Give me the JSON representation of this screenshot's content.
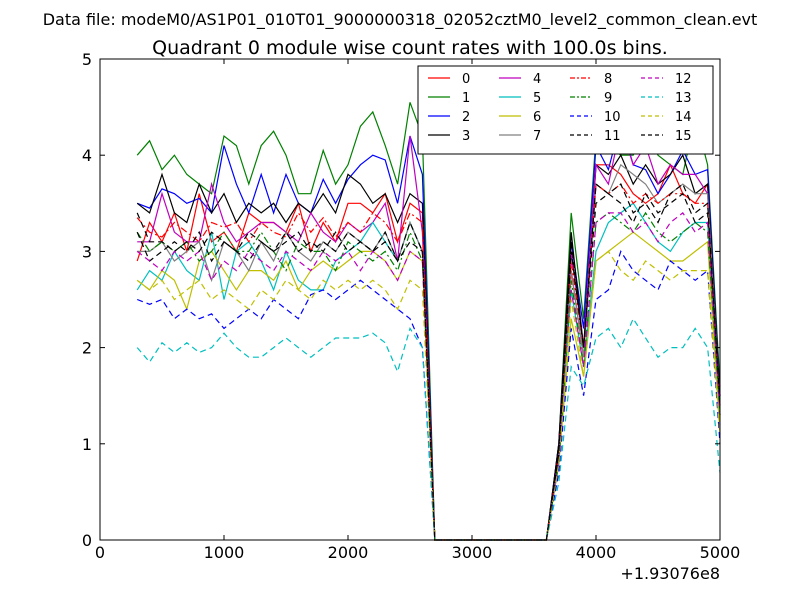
{
  "figure": {
    "suptitle": "Data file: modeM0/AS1P01_010T01_9000000318_02052cztM0_level2_common_clean.evt",
    "title": "Quadrant 0 module wise count rates with 100.0s bins.",
    "x_offset_label": "+1.93076e8"
  },
  "chart_data": {
    "type": "line",
    "title": "Quadrant 0 module wise count rates with 100.0s bins.",
    "xlabel": "",
    "ylabel": "",
    "xlim": [
      0,
      5000
    ],
    "ylim": [
      0,
      5
    ],
    "x_offset": "+1.93076e8",
    "x_ticks": [
      "0",
      "1000",
      "2000",
      "3000",
      "4000",
      "5000"
    ],
    "y_ticks": [
      "0",
      "1",
      "2",
      "3",
      "4",
      "5"
    ],
    "grid": false,
    "legend_position": "top-right",
    "legend_columns": 4,
    "x": [
      300,
      400,
      500,
      600,
      700,
      800,
      900,
      1000,
      1100,
      1200,
      1300,
      1400,
      1500,
      1600,
      1700,
      1800,
      1900,
      2000,
      2100,
      2200,
      2300,
      2400,
      2500,
      2600,
      2700,
      2800,
      2900,
      3000,
      3100,
      3200,
      3300,
      3400,
      3500,
      3600,
      3700,
      3800,
      3900,
      4000,
      4100,
      4200,
      4300,
      4400,
      4500,
      4600,
      4700,
      4800,
      4900,
      5000
    ],
    "series": [
      {
        "name": "0",
        "color": "#ff0000",
        "dash": "solid",
        "values": [
          2.9,
          3.3,
          3.1,
          3.4,
          3.0,
          3.6,
          3.1,
          3.2,
          3.0,
          3.4,
          3.3,
          3.3,
          3.2,
          3.5,
          3.0,
          3.3,
          3.1,
          3.5,
          3.5,
          3.4,
          3.6,
          3.1,
          3.5,
          3.4,
          0,
          0,
          0,
          0,
          0,
          0,
          0,
          0,
          0,
          0,
          0.9,
          2.8,
          1.9,
          3.9,
          3.9,
          3.8,
          3.6,
          3.5,
          3.6,
          3.9,
          3.6,
          3.5,
          3.7,
          1.5
        ]
      },
      {
        "name": "1",
        "color": "#008000",
        "dash": "solid",
        "values": [
          4.0,
          4.15,
          3.85,
          4.0,
          3.8,
          3.7,
          3.6,
          4.2,
          4.1,
          3.7,
          4.1,
          4.25,
          4.0,
          3.6,
          3.6,
          4.05,
          3.7,
          3.9,
          4.3,
          4.45,
          4.1,
          3.7,
          4.55,
          4.2,
          0,
          0,
          0,
          0,
          0,
          0,
          0,
          0,
          0,
          0,
          1.0,
          3.4,
          2.3,
          4.2,
          4.1,
          4.0,
          4.0,
          4.3,
          4.0,
          3.9,
          3.8,
          4.4,
          3.9,
          1.6
        ]
      },
      {
        "name": "2",
        "color": "#0000ff",
        "dash": "solid",
        "values": [
          3.5,
          3.45,
          3.65,
          3.6,
          3.5,
          3.55,
          3.4,
          4.1,
          3.7,
          3.4,
          3.8,
          3.4,
          3.8,
          3.5,
          3.4,
          3.75,
          3.5,
          3.75,
          3.9,
          4.0,
          3.95,
          3.5,
          4.2,
          3.8,
          0,
          0,
          0,
          0,
          0,
          0,
          0,
          0,
          0,
          0,
          1.0,
          3.1,
          2.2,
          4.1,
          3.85,
          4.35,
          3.9,
          3.85,
          3.6,
          3.8,
          4.05,
          3.8,
          3.85,
          1.5
        ]
      },
      {
        "name": "3",
        "color": "#000000",
        "dash": "solid",
        "values": [
          3.5,
          3.4,
          3.8,
          3.4,
          3.3,
          3.7,
          3.4,
          3.6,
          3.3,
          3.5,
          3.4,
          3.5,
          3.3,
          3.5,
          3.4,
          3.6,
          3.4,
          3.8,
          3.7,
          3.5,
          3.6,
          3.3,
          3.6,
          3.5,
          0,
          0,
          0,
          0,
          0,
          0,
          0,
          0,
          0,
          0,
          1.0,
          3.2,
          2.0,
          3.9,
          3.8,
          4.0,
          3.7,
          3.9,
          3.7,
          3.8,
          4.0,
          3.6,
          3.7,
          1.5
        ]
      },
      {
        "name": "4",
        "color": "#bf00bf",
        "dash": "solid",
        "values": [
          3.1,
          3.1,
          3.6,
          3.2,
          3.1,
          3.1,
          3.7,
          3.3,
          3.1,
          3.2,
          3.3,
          3.3,
          3.2,
          3.1,
          3.4,
          3.2,
          3.1,
          3.3,
          3.2,
          3.3,
          3.5,
          2.9,
          4.2,
          3.2,
          0,
          0,
          0,
          0,
          0,
          0,
          0,
          0,
          0,
          0,
          0.9,
          3.0,
          2.0,
          3.9,
          3.7,
          4.3,
          3.9,
          4.1,
          3.7,
          3.9,
          3.8,
          3.8,
          3.6,
          1.3
        ]
      },
      {
        "name": "5",
        "color": "#00bfbf",
        "dash": "solid",
        "values": [
          2.6,
          2.8,
          2.7,
          3.0,
          2.8,
          2.7,
          3.2,
          2.5,
          3.0,
          3.1,
          2.9,
          2.6,
          3.0,
          2.7,
          2.6,
          2.6,
          2.9,
          3.0,
          3.1,
          3.3,
          3.1,
          2.9,
          3.3,
          3.0,
          0,
          0,
          0,
          0,
          0,
          0,
          0,
          0,
          0,
          0,
          0.8,
          2.6,
          1.8,
          3.0,
          3.3,
          3.4,
          3.5,
          3.3,
          3.1,
          3.0,
          3.2,
          3.3,
          3.3,
          1.2
        ]
      },
      {
        "name": "6",
        "color": "#bfbf00",
        "dash": "solid",
        "values": [
          2.7,
          2.6,
          2.8,
          2.7,
          2.4,
          2.9,
          3.0,
          2.8,
          2.6,
          2.8,
          2.8,
          2.7,
          2.9,
          2.6,
          2.8,
          2.9,
          2.8,
          2.9,
          3.0,
          3.0,
          2.9,
          2.7,
          3.0,
          2.9,
          0,
          0,
          0,
          0,
          0,
          0,
          0,
          0,
          0,
          0,
          0.8,
          2.3,
          1.7,
          2.9,
          3.0,
          3.1,
          3.2,
          3.1,
          3.0,
          2.9,
          2.9,
          3.0,
          3.1,
          1.1
        ]
      },
      {
        "name": "7",
        "color": "#808080",
        "dash": "solid",
        "values": [
          3.0,
          3.0,
          3.1,
          2.9,
          3.0,
          3.1,
          2.7,
          3.1,
          3.0,
          2.8,
          3.1,
          2.9,
          3.2,
          3.0,
          2.9,
          3.1,
          3.0,
          3.2,
          3.1,
          3.0,
          3.2,
          2.9,
          3.3,
          3.0,
          0,
          0,
          0,
          0,
          0,
          0,
          0,
          0,
          0,
          0,
          0.8,
          2.8,
          1.9,
          3.7,
          3.6,
          3.9,
          3.8,
          3.7,
          3.5,
          3.6,
          3.7,
          3.6,
          3.6,
          1.4
        ]
      },
      {
        "name": "8",
        "color": "#ff0000",
        "dash": "dashdot",
        "values": [
          3.35,
          3.2,
          3.15,
          3.3,
          3.2,
          3.1,
          3.3,
          3.25,
          3.3,
          3.1,
          3.3,
          3.2,
          3.15,
          3.4,
          3.2,
          3.35,
          3.15,
          3.3,
          3.2,
          3.4,
          3.3,
          3.1,
          3.4,
          3.3,
          0,
          0,
          0,
          0,
          0,
          0,
          0,
          0,
          0,
          0,
          0.9,
          2.9,
          2.0,
          3.7,
          3.6,
          3.7,
          3.5,
          3.6,
          3.5,
          3.6,
          3.6,
          3.5,
          3.5,
          1.4
        ]
      },
      {
        "name": "9",
        "color": "#008000",
        "dash": "dashdot",
        "values": [
          3.2,
          3.0,
          3.1,
          3.0,
          3.1,
          2.9,
          3.0,
          3.2,
          3.0,
          3.0,
          3.2,
          3.0,
          2.8,
          3.1,
          3.0,
          3.0,
          2.8,
          3.1,
          3.0,
          2.9,
          3.0,
          2.8,
          3.2,
          2.9,
          0,
          0,
          0,
          0,
          0,
          0,
          0,
          0,
          0,
          0,
          0.8,
          2.7,
          1.8,
          3.3,
          3.4,
          3.3,
          3.2,
          3.4,
          3.2,
          3.1,
          3.2,
          3.3,
          3.2,
          1.3
        ]
      },
      {
        "name": "10",
        "color": "#0000ff",
        "dash": "dashed",
        "values": [
          2.5,
          2.45,
          2.5,
          2.3,
          2.4,
          2.3,
          2.35,
          2.2,
          2.3,
          2.4,
          2.3,
          2.5,
          2.4,
          2.3,
          2.55,
          2.6,
          2.5,
          2.6,
          2.7,
          2.6,
          2.5,
          2.4,
          2.3,
          2.0,
          0,
          0,
          0,
          0,
          0,
          0,
          0,
          0,
          0,
          0,
          0.7,
          2.2,
          1.5,
          2.5,
          2.6,
          3.0,
          2.8,
          2.7,
          2.6,
          2.9,
          2.8,
          2.7,
          2.8,
          1.0
        ]
      },
      {
        "name": "11",
        "color": "#000000",
        "dash": "dashed",
        "values": [
          3.2,
          2.9,
          3.0,
          3.1,
          3.0,
          3.2,
          2.9,
          3.1,
          3.0,
          2.9,
          3.1,
          3.0,
          3.2,
          3.0,
          3.1,
          3.0,
          3.2,
          3.0,
          3.1,
          3.0,
          3.2,
          2.9,
          3.1,
          3.0,
          0,
          0,
          0,
          0,
          0,
          0,
          0,
          0,
          0,
          0,
          0.9,
          3.0,
          2.0,
          3.5,
          3.6,
          3.5,
          3.3,
          3.6,
          3.4,
          3.5,
          3.6,
          3.3,
          3.4,
          1.4
        ]
      },
      {
        "name": "12",
        "color": "#bf00bf",
        "dash": "dashed",
        "values": [
          3.0,
          2.9,
          2.8,
          3.0,
          2.9,
          3.0,
          2.7,
          2.9,
          2.8,
          3.0,
          2.9,
          2.8,
          3.0,
          2.9,
          2.8,
          3.0,
          2.9,
          3.0,
          2.8,
          3.0,
          2.9,
          2.7,
          3.0,
          2.9,
          0,
          0,
          0,
          0,
          0,
          0,
          0,
          0,
          0,
          0,
          0.8,
          2.6,
          1.8,
          3.3,
          3.4,
          3.4,
          3.2,
          3.3,
          3.1,
          3.3,
          3.4,
          3.2,
          3.3,
          1.3
        ]
      },
      {
        "name": "13",
        "color": "#00bfbf",
        "dash": "dashed",
        "values": [
          2.0,
          1.85,
          2.05,
          1.95,
          2.05,
          1.95,
          2.0,
          2.15,
          2.0,
          1.9,
          1.9,
          2.0,
          2.1,
          2.0,
          1.9,
          2.0,
          2.1,
          2.1,
          2.1,
          2.15,
          2.05,
          1.75,
          2.2,
          2.0,
          0,
          0,
          0,
          0,
          0,
          0,
          0,
          0,
          0,
          0,
          0.6,
          1.8,
          1.6,
          2.1,
          2.2,
          2.0,
          2.3,
          2.1,
          1.9,
          2.0,
          2.0,
          2.2,
          2.0,
          0.7
        ]
      },
      {
        "name": "14",
        "color": "#bfbf00",
        "dash": "dashed",
        "values": [
          2.7,
          2.6,
          2.7,
          2.5,
          2.6,
          2.7,
          2.5,
          2.6,
          2.5,
          2.4,
          2.6,
          2.5,
          2.7,
          2.6,
          2.5,
          2.7,
          2.6,
          2.7,
          2.6,
          2.7,
          2.6,
          2.4,
          2.7,
          2.6,
          0,
          0,
          0,
          0,
          0,
          0,
          0,
          0,
          0,
          0,
          0.8,
          2.5,
          1.7,
          2.9,
          3.0,
          2.8,
          2.7,
          2.9,
          2.8,
          2.7,
          2.8,
          2.8,
          2.8,
          1.1
        ]
      },
      {
        "name": "15",
        "color": "#000000",
        "dash": "dashed",
        "values": [
          3.4,
          3.1,
          3.1,
          3.0,
          3.1,
          3.0,
          3.2,
          3.1,
          3.0,
          3.2,
          3.1,
          3.0,
          3.1,
          3.2,
          3.0,
          3.1,
          3.0,
          3.2,
          3.1,
          3.0,
          3.1,
          2.9,
          3.3,
          3.0,
          0,
          0,
          0,
          0,
          0,
          0,
          0,
          0,
          0,
          0,
          0.9,
          3.1,
          2.0,
          3.7,
          3.6,
          3.7,
          3.4,
          3.5,
          3.3,
          3.6,
          3.7,
          3.4,
          3.5,
          1.4
        ]
      }
    ]
  }
}
